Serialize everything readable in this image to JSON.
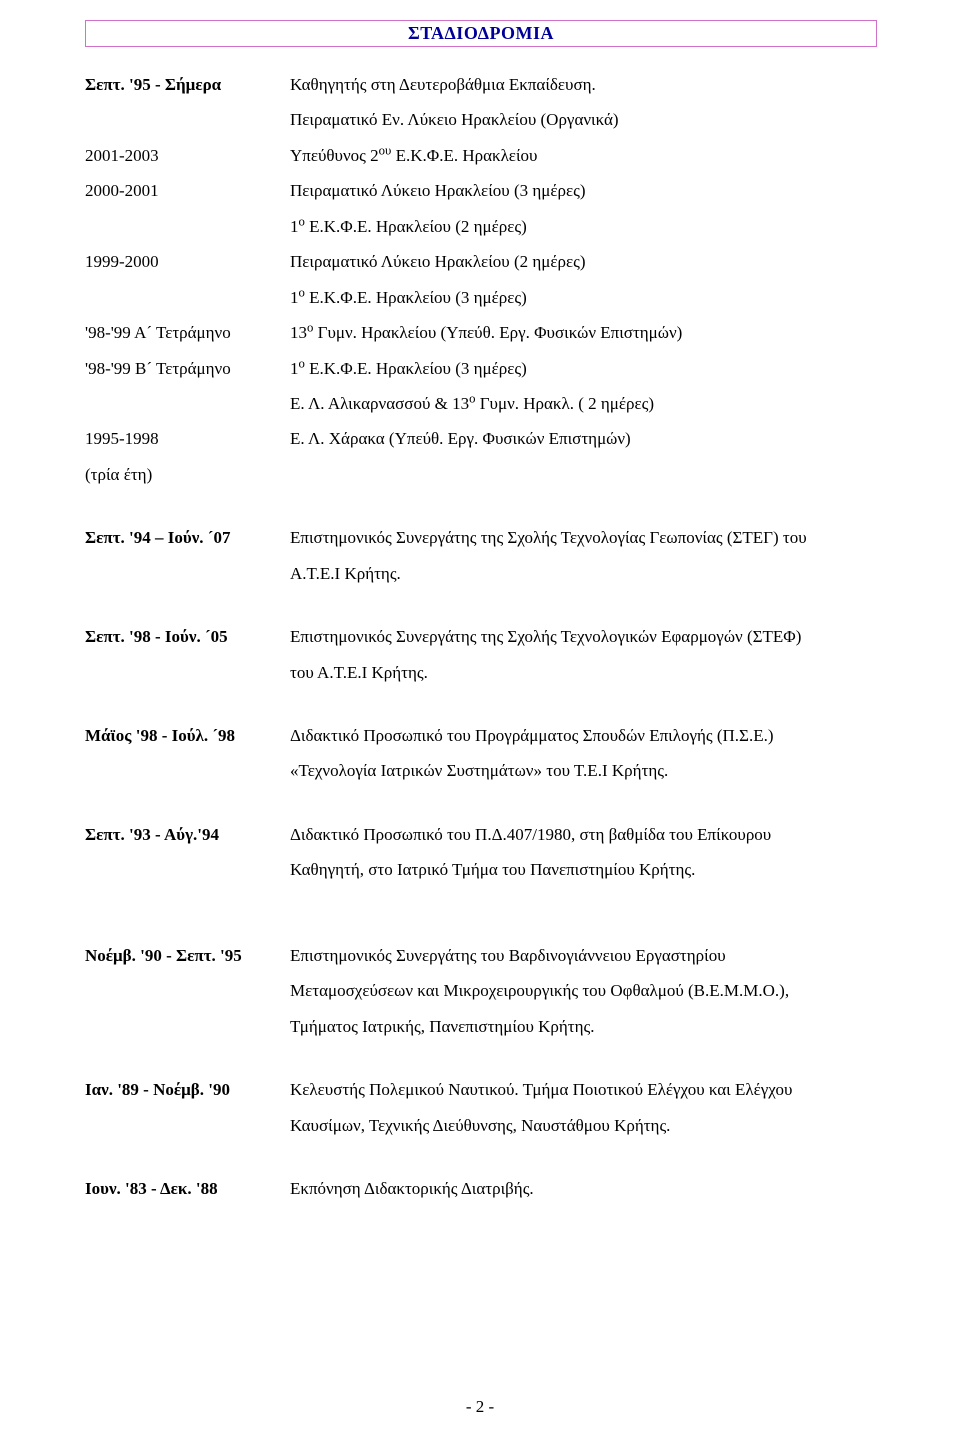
{
  "heading": "ΣΤΑΔΙΟΔΡΟΜΙΑ",
  "career": {
    "rows": [
      {
        "left": "Σεπτ. '95 - Σήμερα",
        "left_bold": true,
        "right": "Καθηγητής στη Δευτεροβάθμια Εκπαίδευση."
      },
      {
        "left": "",
        "right": "Πειραματικό Εν. Λύκειο Ηρακλείου (Οργανικά)"
      },
      {
        "left": "2001-2003",
        "right_html": "Υπεύθυνος 2<sup>ου</sup> Ε.Κ.Φ.Ε. Ηρακλείου"
      },
      {
        "left": "2000-2001",
        "right": "Πειραματικό Λύκειο Ηρακλείου (3 ημέρες)"
      },
      {
        "left": "",
        "right_html": "1<sup>ο</sup> Ε.Κ.Φ.Ε. Ηρακλείου (2 ημέρες)"
      },
      {
        "left": "1999-2000",
        "right": "Πειραματικό Λύκειο Ηρακλείου (2 ημέρες)"
      },
      {
        "left": "",
        "right_html": "1<sup>ο</sup> Ε.Κ.Φ.Ε. Ηρακλείου (3 ημέρες)"
      },
      {
        "left": "'98-'99 Α´ Τετράμηνο",
        "right_html": "13<sup>ο</sup> Γυμν. Ηρακλείου (Υπεύθ. Εργ. Φυσικών Επιστημών)"
      },
      {
        "left": "'98-'99 Β´ Τετράμηνο",
        "right_html": "1<sup>ο</sup> Ε.Κ.Φ.Ε. Ηρακλείου (3 ημέρες)"
      },
      {
        "left": "",
        "right_html": "Ε. Λ. Αλικαρνασσού & 13<sup>ο</sup> Γυμν. Ηρακλ. ( 2 ημέρες)"
      },
      {
        "left": "1995-1998",
        "right": "Ε. Λ. Χάρακα (Υπεύθ. Εργ. Φυσικών Επιστημών)"
      },
      {
        "left": "(τρία έτη)",
        "right": ""
      }
    ]
  },
  "entries": [
    {
      "period": "Σεπτ. '94 – Ιούν. ´07",
      "lines": [
        "Επιστημονικός Συνεργάτης της Σχολής Τεχνολογίας Γεωπονίας (ΣΤΕΓ) του",
        "Α.Τ.Ε.Ι Κρήτης."
      ]
    },
    {
      "period": "Σεπτ. '98 - Ιούν. ´05",
      "lines": [
        "Επιστημονικός Συνεργάτης της Σχολής Τεχνολογικών Εφαρμογών (ΣΤΕΦ)",
        "του Α.Τ.Ε.Ι Κρήτης."
      ]
    },
    {
      "period": "Μάϊος '98 - Ιούλ. ´98",
      "lines": [
        "Διδακτικό Προσωπικό του Προγράμματος Σπουδών Επιλογής (Π.Σ.Ε.)",
        "«Τεχνολογία Ιατρικών Συστημάτων» του Τ.Ε.Ι Κρήτης."
      ]
    },
    {
      "period": "Σεπτ. '93 - Αύγ.'94",
      "lines": [
        "Διδακτικό Προσωπικό του Π.Δ.407/1980, στη βαθμίδα του Επίκουρου",
        "Καθηγητή, στο Ιατρικό Τμήμα του Πανεπιστημίου Κρήτης."
      ]
    },
    {
      "period": "Νοέμβ. '90 - Σεπτ. '95",
      "lines": [
        "Επιστημονικός Συνεργάτης  του Βαρδινογιάννειου  Εργαστηρίου",
        "Μεταμοσχεύσεων και Μικροχειρουργικής του Οφθαλμού (Β.Ε.Μ.Μ.Ο.),",
        "Τμήματος Ιατρικής,  Πανεπιστημίου Κρήτης."
      ]
    },
    {
      "period": "Ιαν. '89 - Νοέμβ. '90",
      "lines": [
        "Κελευστής Πολεμικού Ναυτικού. Τμήμα Ποιοτικού Ελέγχου και Ελέγχου",
        "Καυσίμων, Τεχνικής Διεύθυνσης, Ναυστάθμου Κρήτης."
      ]
    },
    {
      "period": "Ιουν. '83 - Δεκ. '88",
      "lines": [
        "Εκπόνηση Διδακτορικής Διατριβής."
      ]
    }
  ],
  "page_number": "- 2 -"
}
